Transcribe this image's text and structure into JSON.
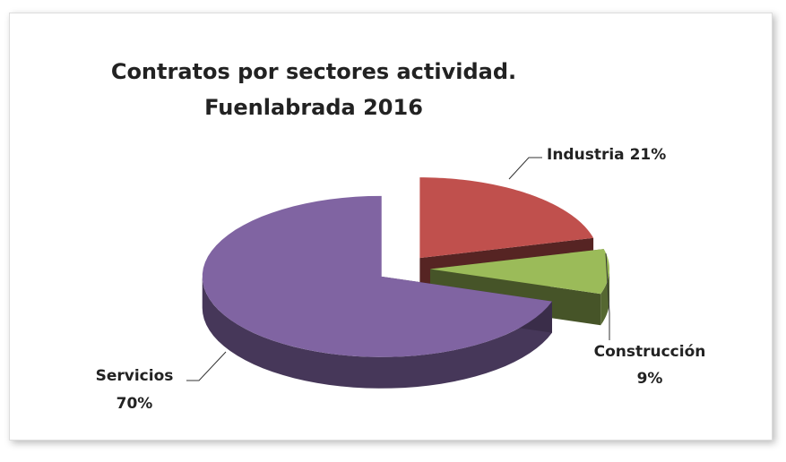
{
  "chart_data": {
    "type": "pie",
    "title": "Contratos por sectores actividad. Fuenlabrada 2016",
    "categories": [
      "Industria",
      "Construcción",
      "Servicios"
    ],
    "values": [
      21,
      9,
      70
    ],
    "value_labels": [
      "21%",
      "9%",
      "70%"
    ],
    "colors": [
      "#c0504d",
      "#9bbb59",
      "#8064a2"
    ]
  }
}
